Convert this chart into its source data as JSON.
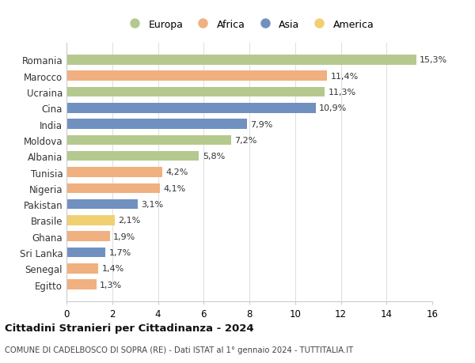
{
  "categories": [
    "Romania",
    "Marocco",
    "Ucraina",
    "Cina",
    "India",
    "Moldova",
    "Albania",
    "Tunisia",
    "Nigeria",
    "Pakistan",
    "Brasile",
    "Ghana",
    "Sri Lanka",
    "Senegal",
    "Egitto"
  ],
  "values": [
    15.3,
    11.4,
    11.3,
    10.9,
    7.9,
    7.2,
    5.8,
    4.2,
    4.1,
    3.1,
    2.1,
    1.9,
    1.7,
    1.4,
    1.3
  ],
  "labels": [
    "15,3%",
    "11,4%",
    "11,3%",
    "10,9%",
    "7,9%",
    "7,2%",
    "5,8%",
    "4,2%",
    "4,1%",
    "3,1%",
    "2,1%",
    "1,9%",
    "1,7%",
    "1,4%",
    "1,3%"
  ],
  "continents": [
    "Europa",
    "Africa",
    "Europa",
    "Asia",
    "Asia",
    "Europa",
    "Europa",
    "Africa",
    "Africa",
    "Asia",
    "America",
    "Africa",
    "Asia",
    "Africa",
    "Africa"
  ],
  "continent_colors": {
    "Europa": "#b5c98e",
    "Africa": "#f0b080",
    "Asia": "#7090c0",
    "America": "#f0d070"
  },
  "legend_order": [
    "Europa",
    "Africa",
    "Asia",
    "America"
  ],
  "xlim": [
    0,
    16
  ],
  "xticks": [
    0,
    2,
    4,
    6,
    8,
    10,
    12,
    14,
    16
  ],
  "title": "Cittadini Stranieri per Cittadinanza - 2024",
  "subtitle": "COMUNE DI CADELBOSCO DI SOPRA (RE) - Dati ISTAT al 1° gennaio 2024 - TUTTITALIA.IT",
  "background_color": "#ffffff",
  "grid_color": "#dddddd",
  "bar_height": 0.62,
  "label_fontsize": 8,
  "ytick_fontsize": 8.5,
  "xtick_fontsize": 8.5
}
